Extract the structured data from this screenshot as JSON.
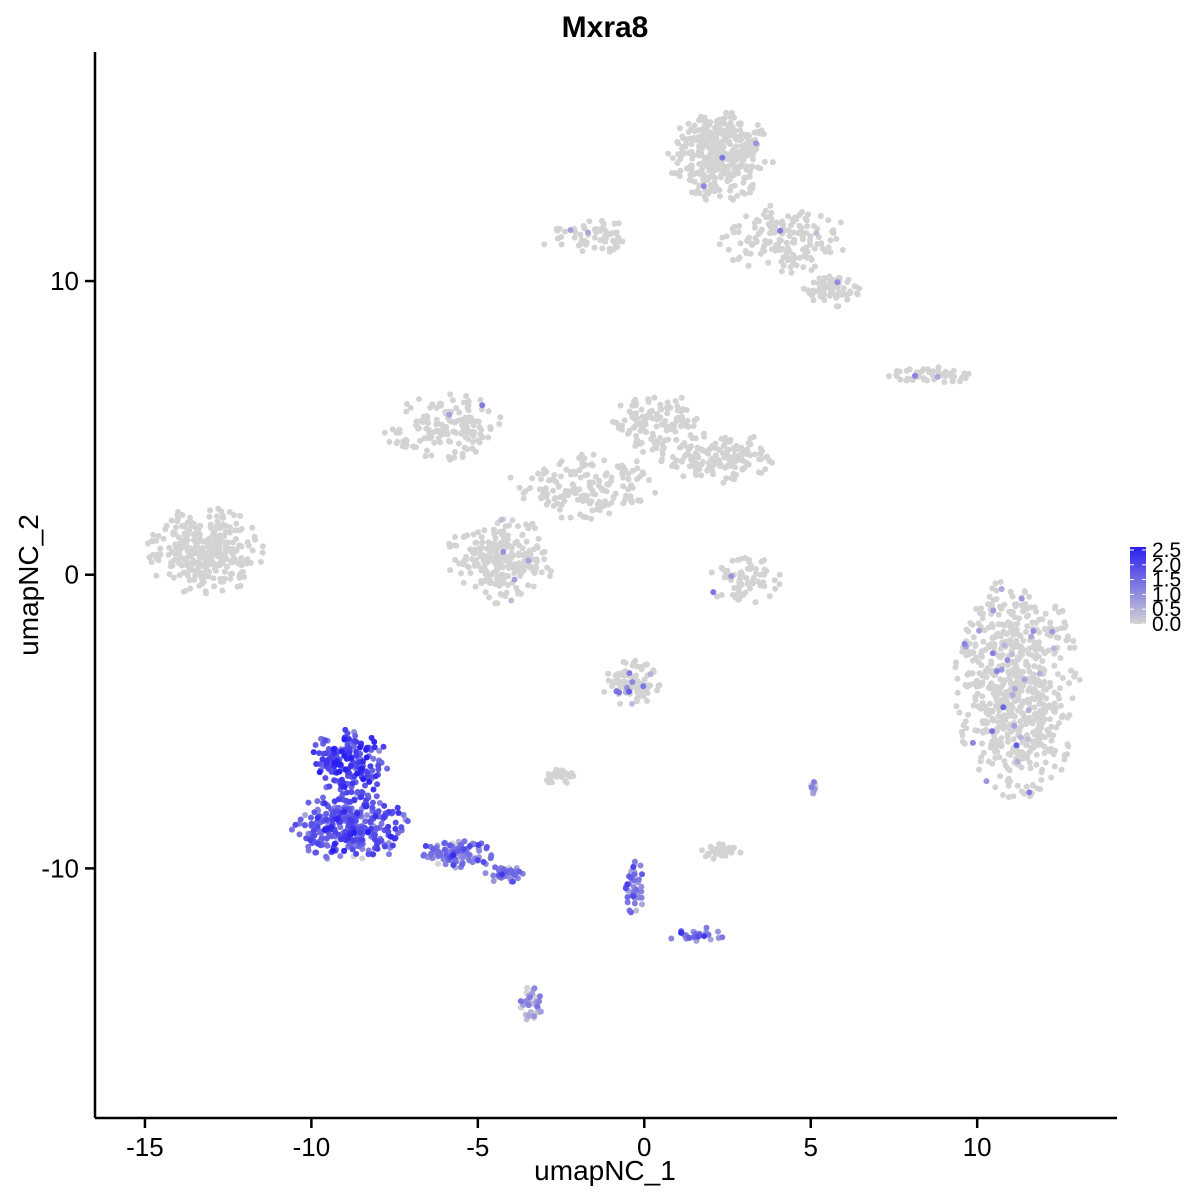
{
  "chart_data": {
    "type": "scatter",
    "title": "Mxra8",
    "xlabel": "umapNC_1",
    "ylabel": "umapNC_2",
    "xlim": [
      -16.5,
      14.2
    ],
    "ylim": [
      -18.5,
      17.8
    ],
    "x_ticks": [
      -15,
      -10,
      -5,
      0,
      5,
      10
    ],
    "x_tick_labels": [
      "-15",
      "-10",
      "-5",
      "0",
      "5",
      "10"
    ],
    "y_ticks": [
      -10,
      0,
      10
    ],
    "y_tick_labels": [
      "-10",
      "0",
      "10"
    ],
    "grid": false,
    "color_scale": {
      "low_color": "#d3d3d3",
      "high_color": "#2a1ff0",
      "min": 0,
      "max": 2.6,
      "breaks": [
        "2.5",
        "2.0",
        "1.5",
        "1.0",
        "0.5",
        "0.0"
      ],
      "legend_position": "right"
    },
    "clusters": [
      {
        "cx": 11.2,
        "cy": -3.9,
        "rx": 1.9,
        "ry": 3.9,
        "n": 700,
        "expr_mean": 0.05,
        "expr_frac": 0.05
      },
      {
        "cx": 2.3,
        "cy": 14.3,
        "rx": 1.6,
        "ry": 1.6,
        "n": 380,
        "expr_mean": 0.0,
        "expr_frac": 0.01
      },
      {
        "cx": 4.2,
        "cy": 11.4,
        "rx": 2.0,
        "ry": 1.2,
        "n": 160,
        "expr_mean": 0.0,
        "expr_frac": 0.02
      },
      {
        "cx": 5.6,
        "cy": 9.7,
        "rx": 0.9,
        "ry": 0.6,
        "n": 70,
        "expr_mean": 0.0,
        "expr_frac": 0.03
      },
      {
        "cx": -1.7,
        "cy": 11.5,
        "rx": 1.5,
        "ry": 0.6,
        "n": 60,
        "expr_mean": 0.0,
        "expr_frac": 0.02
      },
      {
        "cx": -13.2,
        "cy": 0.8,
        "rx": 1.8,
        "ry": 1.5,
        "n": 320,
        "expr_mean": 0.0,
        "expr_frac": 0.0
      },
      {
        "cx": -6.0,
        "cy": 5.0,
        "rx": 1.9,
        "ry": 1.2,
        "n": 150,
        "expr_mean": 0.0,
        "expr_frac": 0.01
      },
      {
        "cx": -4.3,
        "cy": 0.5,
        "rx": 1.7,
        "ry": 1.5,
        "n": 240,
        "expr_mean": 0.0,
        "expr_frac": 0.03
      },
      {
        "cx": -1.8,
        "cy": 3.0,
        "rx": 2.3,
        "ry": 1.2,
        "n": 160,
        "expr_mean": 0.0,
        "expr_frac": 0.0
      },
      {
        "cx": 0.3,
        "cy": 5.2,
        "rx": 1.3,
        "ry": 1.1,
        "n": 120,
        "expr_mean": 0.0,
        "expr_frac": 0.0
      },
      {
        "cx": 2.2,
        "cy": 4.0,
        "rx": 1.8,
        "ry": 0.9,
        "n": 160,
        "expr_mean": 0.0,
        "expr_frac": 0.0
      },
      {
        "cx": 3.0,
        "cy": -0.2,
        "rx": 1.1,
        "ry": 0.9,
        "n": 70,
        "expr_mean": 0.0,
        "expr_frac": 0.02
      },
      {
        "cx": 8.6,
        "cy": 6.8,
        "rx": 1.3,
        "ry": 0.3,
        "n": 55,
        "expr_mean": 0.0,
        "expr_frac": 0.05
      },
      {
        "cx": -8.9,
        "cy": -6.4,
        "rx": 1.2,
        "ry": 1.2,
        "n": 190,
        "expr_mean": 1.9,
        "expr_frac": 1.0
      },
      {
        "cx": -8.8,
        "cy": -8.6,
        "rx": 1.8,
        "ry": 1.2,
        "n": 330,
        "expr_mean": 1.7,
        "expr_frac": 0.95
      },
      {
        "cx": -5.6,
        "cy": -9.5,
        "rx": 1.2,
        "ry": 0.5,
        "n": 110,
        "expr_mean": 1.3,
        "expr_frac": 0.9
      },
      {
        "cx": -4.2,
        "cy": -10.2,
        "rx": 0.6,
        "ry": 0.3,
        "n": 50,
        "expr_mean": 1.2,
        "expr_frac": 0.9
      },
      {
        "cx": -3.4,
        "cy": -14.6,
        "rx": 0.35,
        "ry": 0.6,
        "n": 40,
        "expr_mean": 1.0,
        "expr_frac": 0.6
      },
      {
        "cx": -0.4,
        "cy": -3.7,
        "rx": 0.9,
        "ry": 0.8,
        "n": 90,
        "expr_mean": 0.2,
        "expr_frac": 0.12
      },
      {
        "cx": -2.6,
        "cy": -6.9,
        "rx": 0.5,
        "ry": 0.3,
        "n": 30,
        "expr_mean": 0.0,
        "expr_frac": 0.03
      },
      {
        "cx": 2.3,
        "cy": -9.4,
        "rx": 0.7,
        "ry": 0.3,
        "n": 35,
        "expr_mean": 0.0,
        "expr_frac": 0.02
      },
      {
        "cx": 5.1,
        "cy": -7.3,
        "rx": 0.15,
        "ry": 0.3,
        "n": 12,
        "expr_mean": 0.8,
        "expr_frac": 0.7
      },
      {
        "cx": -0.3,
        "cy": -10.6,
        "rx": 0.3,
        "ry": 1.1,
        "n": 40,
        "expr_mean": 1.2,
        "expr_frac": 0.95
      },
      {
        "cx": 1.6,
        "cy": -12.3,
        "rx": 1.0,
        "ry": 0.3,
        "n": 25,
        "expr_mean": 1.3,
        "expr_frac": 0.95
      }
    ]
  }
}
